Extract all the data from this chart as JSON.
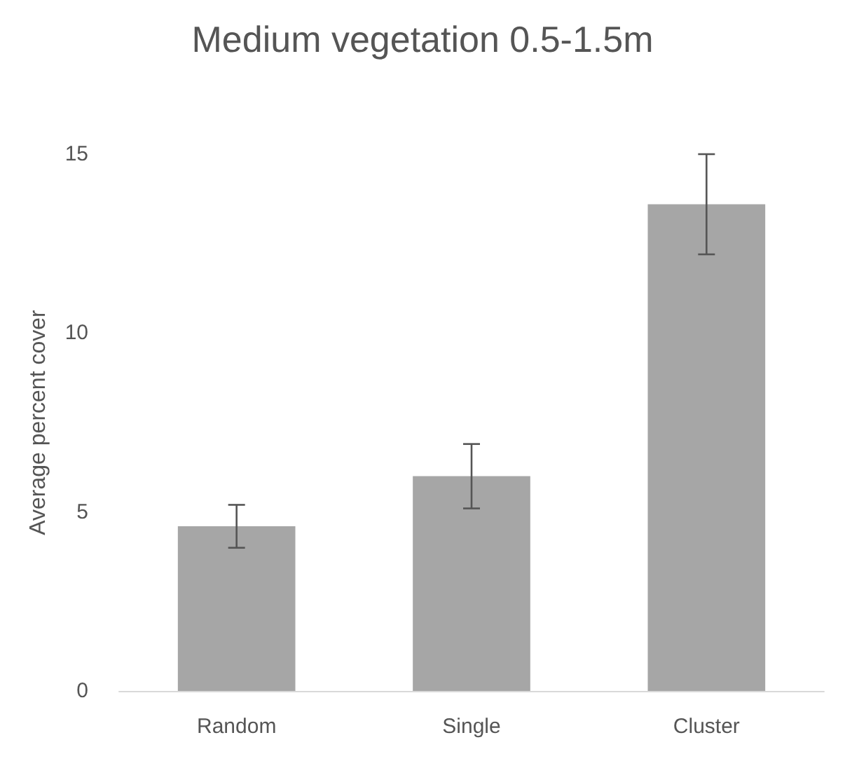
{
  "chart_data": {
    "type": "bar",
    "title": "Medium vegetation 0.5-1.5m",
    "ylabel": "Average percent cover",
    "categories": [
      "Random",
      "Single",
      "Cluster"
    ],
    "values": [
      4.6,
      6.0,
      13.6
    ],
    "errors": [
      0.6,
      0.9,
      1.4
    ],
    "color": "#a6a6a6",
    "ylim": [
      0,
      15
    ],
    "yticks": [
      0,
      5,
      10,
      15
    ],
    "grid": false
  }
}
